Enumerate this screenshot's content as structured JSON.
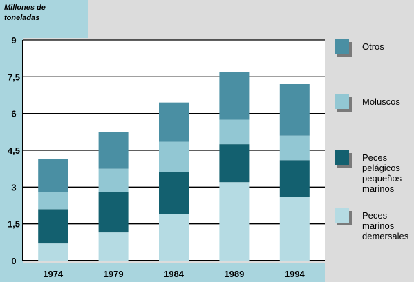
{
  "chart_data": {
    "type": "bar",
    "stacked": true,
    "title": "",
    "ylabel": "Millones de toneladas",
    "xlabel": "",
    "categories": [
      "1974",
      "1979",
      "1984",
      "1989",
      "1994"
    ],
    "ylim": [
      0,
      9
    ],
    "yticks": [
      "0",
      "1,5",
      "3",
      "4,5",
      "6",
      "7,5",
      "9"
    ],
    "ytick_values": [
      0,
      1.5,
      3,
      4.5,
      6,
      7.5,
      9
    ],
    "grid": true,
    "legend_position": "right",
    "series": [
      {
        "name": "Peces marinos demersales",
        "color": "#b5dbe3",
        "values": [
          0.7,
          1.15,
          1.9,
          3.2,
          2.6
        ]
      },
      {
        "name": "Peces pelágicos pequeños marinos",
        "color": "#13606f",
        "values": [
          1.4,
          1.65,
          1.7,
          1.55,
          1.5
        ]
      },
      {
        "name": "Moluscos",
        "color": "#92c7d3",
        "values": [
          0.7,
          0.95,
          1.25,
          1.0,
          1.0
        ]
      },
      {
        "name": "Otros",
        "color": "#4a8fa3",
        "values": [
          1.35,
          1.5,
          1.6,
          1.95,
          2.1
        ]
      }
    ],
    "legend": [
      {
        "lines": [
          "Otros"
        ],
        "color": "#4a8fa3"
      },
      {
        "lines": [
          "Moluscos"
        ],
        "color": "#92c7d3"
      },
      {
        "lines": [
          "Peces",
          "pelágicos",
          "pequeños",
          "marinos"
        ],
        "color": "#13606f"
      },
      {
        "lines": [
          "Peces",
          "marinos",
          "demersales"
        ],
        "color": "#b5dbe3"
      }
    ]
  }
}
